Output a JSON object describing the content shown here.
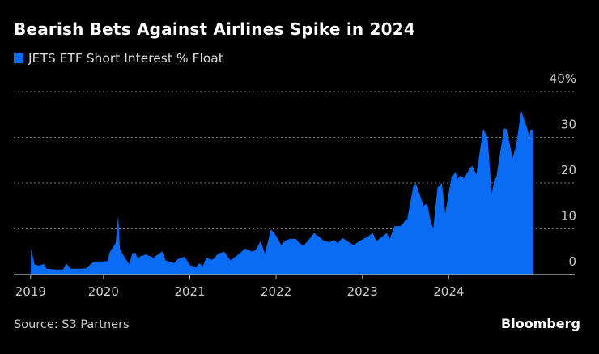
{
  "chart_data": {
    "type": "area",
    "title": "Bearish Bets Against Airlines Spike in 2024",
    "legend": [
      {
        "name": "JETS ETF Short Interest % Float",
        "color": "#0a6cf5"
      }
    ],
    "legend_placement": "top-left",
    "source": "Source: S3 Partners",
    "y_axis_side": "right",
    "ylim": [
      0,
      40
    ],
    "y_ticks": [
      {
        "value": 0,
        "label": "0"
      },
      {
        "value": 10,
        "label": "10"
      },
      {
        "value": 20,
        "label": "20"
      },
      {
        "value": 30,
        "label": "30"
      },
      {
        "value": 40,
        "label": "40%"
      }
    ],
    "x_ticks": [
      {
        "value": 2019.155,
        "label": "2019"
      },
      {
        "value": 2020,
        "label": "2020"
      },
      {
        "value": 2021,
        "label": "2021"
      },
      {
        "value": 2022,
        "label": "2022"
      },
      {
        "value": 2023,
        "label": "2023"
      },
      {
        "value": 2024,
        "label": "2024"
      }
    ],
    "xlim": [
      2018.96,
      2025.46
    ],
    "grid": "horizontal dotted",
    "series": [
      {
        "name": "JETS ETF Short Interest % Float",
        "color": "#0a6cf5",
        "x": [
          2019.155,
          2019.16,
          2019.2,
          2019.25,
          2019.31,
          2019.34,
          2019.46,
          2019.53,
          2019.57,
          2019.62,
          2019.74,
          2019.8,
          2019.88,
          2020.0,
          2020.05,
          2020.07,
          2020.14,
          2020.17,
          2020.19,
          2020.23,
          2020.3,
          2020.33,
          2020.37,
          2020.39,
          2020.49,
          2020.58,
          2020.68,
          2020.72,
          2020.82,
          2020.86,
          2020.94,
          2021.0,
          2021.07,
          2021.11,
          2021.15,
          2021.19,
          2021.26,
          2021.33,
          2021.4,
          2021.47,
          2021.55,
          2021.64,
          2021.73,
          2021.77,
          2021.82,
          2021.87,
          2021.94,
          2022.0,
          2022.06,
          2022.1,
          2022.16,
          2022.23,
          2022.27,
          2022.32,
          2022.44,
          2022.51,
          2022.55,
          2022.62,
          2022.67,
          2022.71,
          2022.77,
          2022.9,
          2022.96,
          2023.05,
          2023.12,
          2023.16,
          2023.21,
          2023.28,
          2023.32,
          2023.37,
          2023.45,
          2023.49,
          2023.52,
          2023.59,
          2023.62,
          2023.71,
          2023.75,
          2023.79,
          2023.82,
          2023.87,
          2023.92,
          2023.96,
          2024.03,
          2024.08,
          2024.1,
          2024.13,
          2024.18,
          2024.24,
          2024.27,
          2024.32,
          2024.4,
          2024.45,
          2024.5,
          2024.53,
          2024.55,
          2024.64,
          2024.67,
          2024.74,
          2024.78,
          2024.84,
          2024.92,
          2024.93,
          2024.95,
          2024.97,
          2024.98
        ],
        "values": [
          0,
          5.8,
          2.2,
          2.0,
          2.3,
          1.3,
          1.1,
          1.1,
          2.4,
          1.3,
          1.3,
          1.4,
          2.8,
          2.9,
          3.0,
          4.8,
          6.9,
          12.9,
          5.7,
          4.2,
          2.2,
          4.6,
          4.8,
          3.7,
          4.4,
          3.7,
          5.1,
          3.1,
          2.5,
          3.4,
          3.9,
          2.1,
          1.6,
          2.5,
          1.8,
          3.7,
          3.2,
          4.6,
          5.0,
          3.1,
          4.2,
          5.7,
          5.0,
          5.6,
          7.4,
          4.6,
          9.9,
          8.5,
          6.4,
          7.4,
          7.8,
          7.8,
          6.9,
          6.3,
          9.1,
          8.1,
          7.4,
          7.1,
          7.6,
          6.9,
          8.0,
          6.4,
          7.3,
          8.2,
          9.1,
          7.3,
          8.0,
          9.1,
          7.8,
          10.6,
          10.6,
          11.7,
          12.2,
          19.3,
          19.9,
          15.0,
          15.6,
          11.7,
          10.0,
          19.0,
          20.0,
          13.4,
          21.1,
          22.5,
          20.8,
          21.6,
          21.1,
          23.1,
          23.8,
          21.9,
          31.9,
          30.0,
          17.5,
          21.1,
          21.1,
          32.0,
          31.8,
          25.5,
          28.1,
          35.8,
          31.4,
          29.6,
          31.8,
          31.6,
          31.6
        ]
      }
    ]
  },
  "brand": "Bloomberg"
}
